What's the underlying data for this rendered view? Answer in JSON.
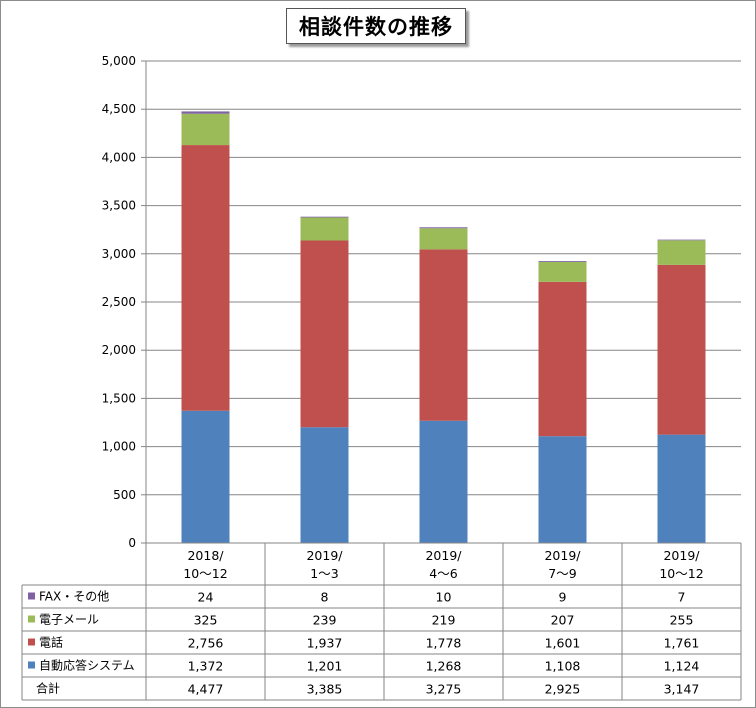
{
  "colors": {
    "series": [
      "#7f62a4",
      "#9bbb59",
      "#c0504d",
      "#4f81bd"
    ],
    "gridline": "#868686",
    "axis": "#868686"
  },
  "chart_data": {
    "type": "bar",
    "stacked": true,
    "title": "相談件数の推移",
    "xlabel": "",
    "ylabel": "",
    "ylim": [
      0,
      5000
    ],
    "yticks": [
      "0",
      "500",
      "1,000",
      "1,500",
      "2,000",
      "2,500",
      "3,000",
      "3,500",
      "4,000",
      "4,500",
      "5,000"
    ],
    "ytick_values": [
      0,
      500,
      1000,
      1500,
      2000,
      2500,
      3000,
      3500,
      4000,
      4500,
      5000
    ],
    "grid": true,
    "categories": [
      [
        "2018/",
        "10～12"
      ],
      [
        "2019/",
        "1～3"
      ],
      [
        "2019/",
        "4～6"
      ],
      [
        "2019/",
        "7～9"
      ],
      [
        "2019/",
        "10～12"
      ]
    ],
    "series": [
      {
        "name": "FAX・その他",
        "values": [
          24,
          8,
          10,
          9,
          7
        ],
        "labels": [
          "24",
          "8",
          "10",
          "9",
          "7"
        ]
      },
      {
        "name": "電子メール",
        "values": [
          325,
          239,
          219,
          207,
          255
        ],
        "labels": [
          "325",
          "239",
          "219",
          "207",
          "255"
        ]
      },
      {
        "name": "電話",
        "values": [
          2756,
          1937,
          1778,
          1601,
          1761
        ],
        "labels": [
          "2,756",
          "1,937",
          "1,778",
          "1,601",
          "1,761"
        ]
      },
      {
        "name": "自動応答システム",
        "values": [
          1372,
          1201,
          1268,
          1108,
          1124
        ],
        "labels": [
          "1,372",
          "1,201",
          "1,268",
          "1,108",
          "1,124"
        ]
      }
    ],
    "totals": {
      "name": "合計",
      "values": [
        4477,
        3385,
        3275,
        2925,
        3147
      ],
      "labels": [
        "4,477",
        "3,385",
        "3,275",
        "2,925",
        "3,147"
      ]
    },
    "stack_order": [
      "自動応答システム",
      "電話",
      "電子メール",
      "FAX・その他"
    ],
    "legend": "data-table"
  }
}
